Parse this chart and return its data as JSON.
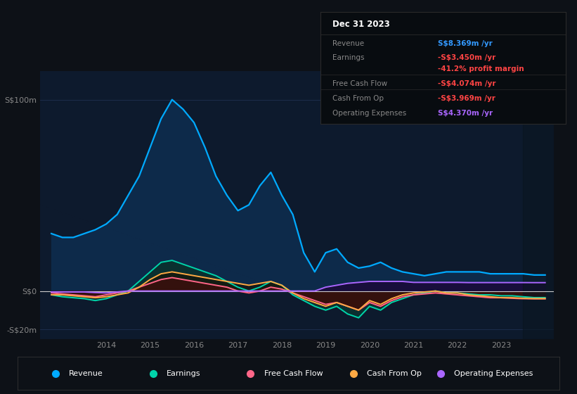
{
  "bg_color": "#0d1117",
  "plot_bg_color": "#0d1a2d",
  "grid_color": "#1e3050",
  "zero_line_color": "#cccccc",
  "ylim": [
    -25,
    115
  ],
  "yticks": [
    -20,
    0,
    100
  ],
  "ytick_labels": [
    "-S$20m",
    "S$0",
    "S$100m"
  ],
  "years": [
    2012.75,
    2013,
    2013.25,
    2013.5,
    2013.75,
    2014,
    2014.25,
    2014.5,
    2014.75,
    2015,
    2015.25,
    2015.5,
    2015.75,
    2016,
    2016.25,
    2016.5,
    2016.75,
    2017,
    2017.25,
    2017.5,
    2017.75,
    2018,
    2018.25,
    2018.5,
    2018.75,
    2019,
    2019.25,
    2019.5,
    2019.75,
    2020,
    2020.25,
    2020.5,
    2020.75,
    2021,
    2021.25,
    2021.5,
    2021.75,
    2022,
    2022.25,
    2022.5,
    2022.75,
    2023,
    2023.25,
    2023.5,
    2023.75,
    2024.0
  ],
  "revenue": [
    30,
    28,
    28,
    30,
    32,
    35,
    40,
    50,
    60,
    75,
    90,
    100,
    95,
    88,
    75,
    60,
    50,
    42,
    45,
    55,
    62,
    50,
    40,
    20,
    10,
    20,
    22,
    15,
    12,
    13,
    15,
    12,
    10,
    9,
    8,
    9,
    10,
    10,
    10,
    10,
    9,
    9,
    9,
    9,
    8.369,
    8.369
  ],
  "earnings": [
    -2,
    -3,
    -3.5,
    -4,
    -5,
    -4,
    -2,
    0,
    5,
    10,
    15,
    16,
    14,
    12,
    10,
    8,
    5,
    2,
    0,
    2,
    5,
    3,
    -2,
    -5,
    -8,
    -10,
    -8,
    -12,
    -14,
    -8,
    -10,
    -6,
    -4,
    -2,
    -1,
    0,
    -1,
    -1,
    -1.5,
    -2,
    -2,
    -2.5,
    -2.5,
    -3,
    -3.45,
    -3.45
  ],
  "free_cash_flow": [
    -1,
    -1.5,
    -2,
    -2.5,
    -3,
    -2,
    -1,
    0,
    2,
    4,
    6,
    7,
    6,
    5,
    4,
    3,
    2,
    0,
    -1,
    0,
    2,
    1,
    -1,
    -3,
    -5,
    -7,
    -6,
    -8,
    -10,
    -6,
    -8,
    -5,
    -3,
    -2,
    -1.5,
    -1,
    -1.5,
    -2,
    -2.5,
    -3,
    -3.5,
    -3.5,
    -3.8,
    -4,
    -4.074,
    -4.074
  ],
  "cash_from_op": [
    -2,
    -2,
    -2.5,
    -3,
    -3.5,
    -3,
    -2,
    -1,
    2,
    6,
    9,
    10,
    9,
    8,
    7,
    6,
    5,
    4,
    3,
    4,
    5,
    3,
    -1,
    -4,
    -6,
    -8,
    -6,
    -8,
    -10,
    -5,
    -7,
    -4,
    -2,
    -1,
    -0.5,
    0,
    -1,
    -1,
    -2,
    -2.5,
    -3,
    -3.5,
    -3.5,
    -3.8,
    -3.969,
    -3.969
  ],
  "op_expenses": [
    -0.5,
    -0.5,
    -0.5,
    -0.5,
    -0.8,
    -1,
    -0.5,
    0,
    0,
    0,
    0,
    0,
    0,
    0,
    0,
    0,
    0,
    0,
    0,
    0,
    0,
    0,
    0,
    0,
    0,
    2,
    3,
    4,
    4.5,
    5,
    5,
    5,
    5,
    4.5,
    4.5,
    4.5,
    4.5,
    4.5,
    4.4,
    4.4,
    4.4,
    4.4,
    4.4,
    4.4,
    4.37,
    4.37
  ],
  "revenue_color": "#00aaff",
  "revenue_fill_color": "#0d2a4a",
  "earnings_color": "#00d4aa",
  "earnings_fill_color": "#0a3030",
  "free_cash_flow_color": "#ff6688",
  "free_cash_flow_fill_color": "#6b1020",
  "cash_from_op_color": "#ffaa44",
  "cash_from_op_fill_color": "#1a1000",
  "op_expenses_color": "#aa66ff",
  "op_expenses_fill_color": "#1a0a3a",
  "xtick_labels": [
    "2014",
    "2015",
    "2016",
    "2017",
    "2018",
    "2019",
    "2020",
    "2021",
    "2022",
    "2023"
  ],
  "xtick_positions": [
    2014,
    2015,
    2016,
    2017,
    2018,
    2019,
    2020,
    2021,
    2022,
    2023
  ],
  "xmin": 2012.5,
  "xmax": 2024.2,
  "shade_start": 2023.5,
  "info_box": {
    "title": "Dec 31 2023",
    "rows": [
      {
        "label": "Revenue",
        "value": "S$8.369m /yr",
        "value_color": "#3399ff"
      },
      {
        "label": "Earnings",
        "value": "-S$3.450m /yr",
        "value_color": "#ff4444"
      },
      {
        "label": "",
        "value": "-41.2% profit margin",
        "value_color": "#ff4444"
      },
      {
        "label": "Free Cash Flow",
        "value": "-S$4.074m /yr",
        "value_color": "#ff4444"
      },
      {
        "label": "Cash From Op",
        "value": "-S$3.969m /yr",
        "value_color": "#ff4444"
      },
      {
        "label": "Operating Expenses",
        "value": "S$4.370m /yr",
        "value_color": "#aa66ff"
      }
    ]
  },
  "legend_items": [
    {
      "label": "Revenue",
      "color": "#00aaff"
    },
    {
      "label": "Earnings",
      "color": "#00d4aa"
    },
    {
      "label": "Free Cash Flow",
      "color": "#ff6688"
    },
    {
      "label": "Cash From Op",
      "color": "#ffaa44"
    },
    {
      "label": "Operating Expenses",
      "color": "#aa66ff"
    }
  ]
}
